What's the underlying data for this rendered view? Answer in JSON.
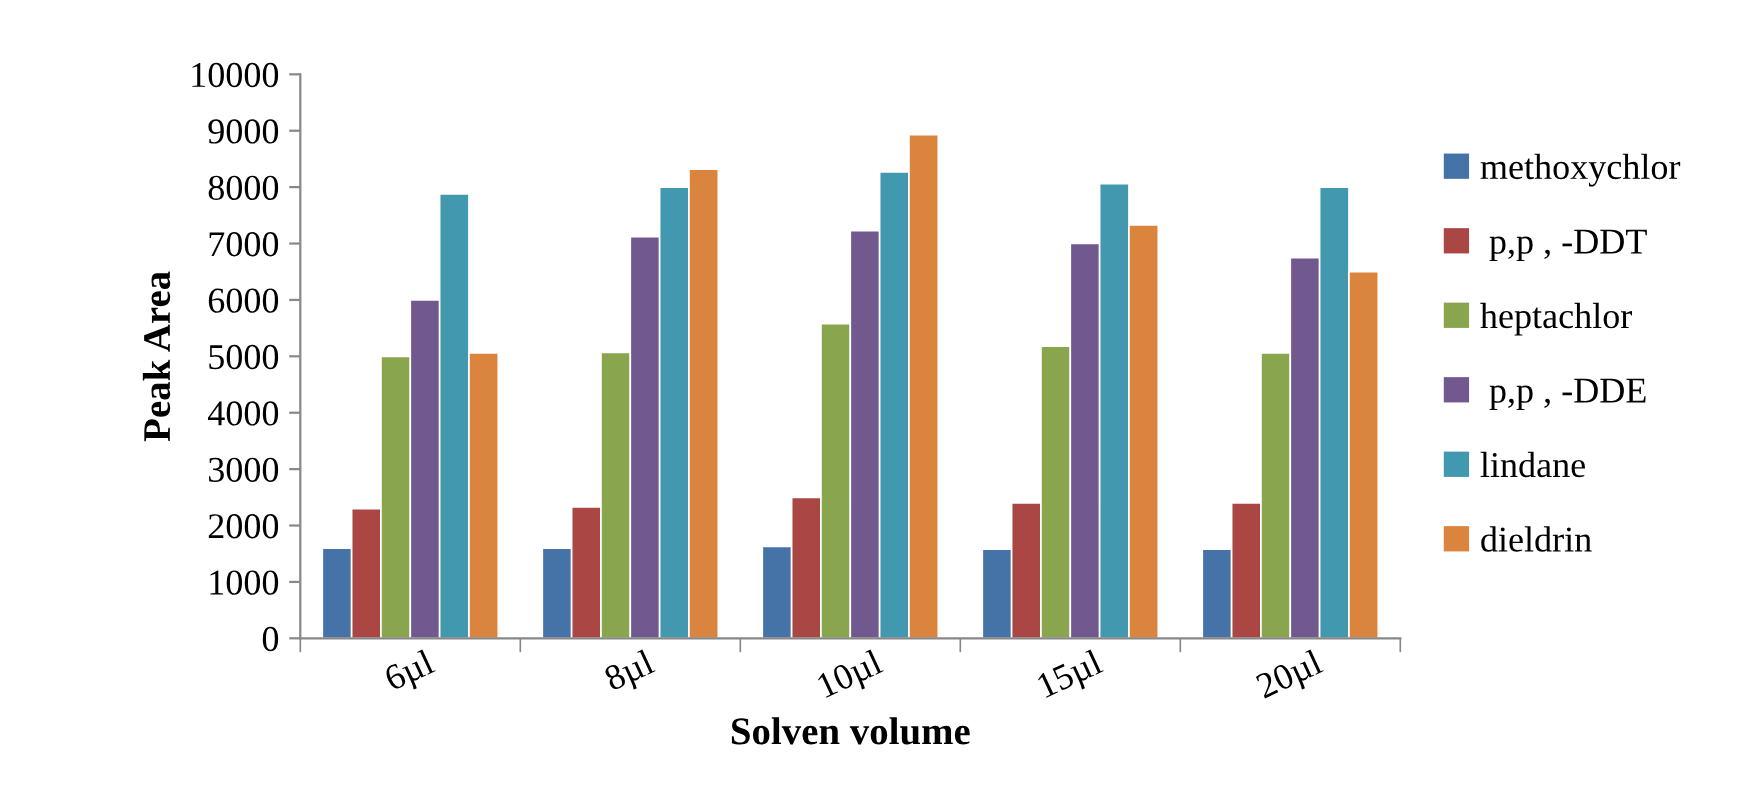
{
  "chart_data": {
    "type": "bar",
    "xlabel": "Solven volume",
    "ylabel": "Peak Area",
    "categories": [
      "6µl",
      "8µl",
      "10µl",
      "15µl",
      "20µl"
    ],
    "ylim": [
      0,
      10000
    ],
    "yticks": [
      0,
      1000,
      2000,
      3000,
      4000,
      5000,
      6000,
      7000,
      8000,
      9000,
      10000
    ],
    "grid": false,
    "legend": "right",
    "series": [
      {
        "name": "methoxychlor",
        "color": "#4572a7",
        "values": [
          1600,
          1600,
          1630,
          1580,
          1580
        ]
      },
      {
        "name": " p,p , -DDT",
        "color": "#aa4643",
        "values": [
          2300,
          2330,
          2500,
          2400,
          2400
        ]
      },
      {
        "name": "heptachlor",
        "color": "#89a54e",
        "values": [
          5000,
          5070,
          5580,
          5180,
          5060
        ]
      },
      {
        "name": " p,p , -DDE",
        "color": "#71588f",
        "values": [
          6000,
          7120,
          7230,
          7000,
          6750
        ]
      },
      {
        "name": "lindane",
        "color": "#4198af",
        "values": [
          7880,
          8000,
          8270,
          8060,
          8000
        ]
      },
      {
        "name": "dieldrin",
        "color": "#db843d",
        "values": [
          5060,
          8320,
          8930,
          7330,
          6500
        ]
      }
    ]
  }
}
